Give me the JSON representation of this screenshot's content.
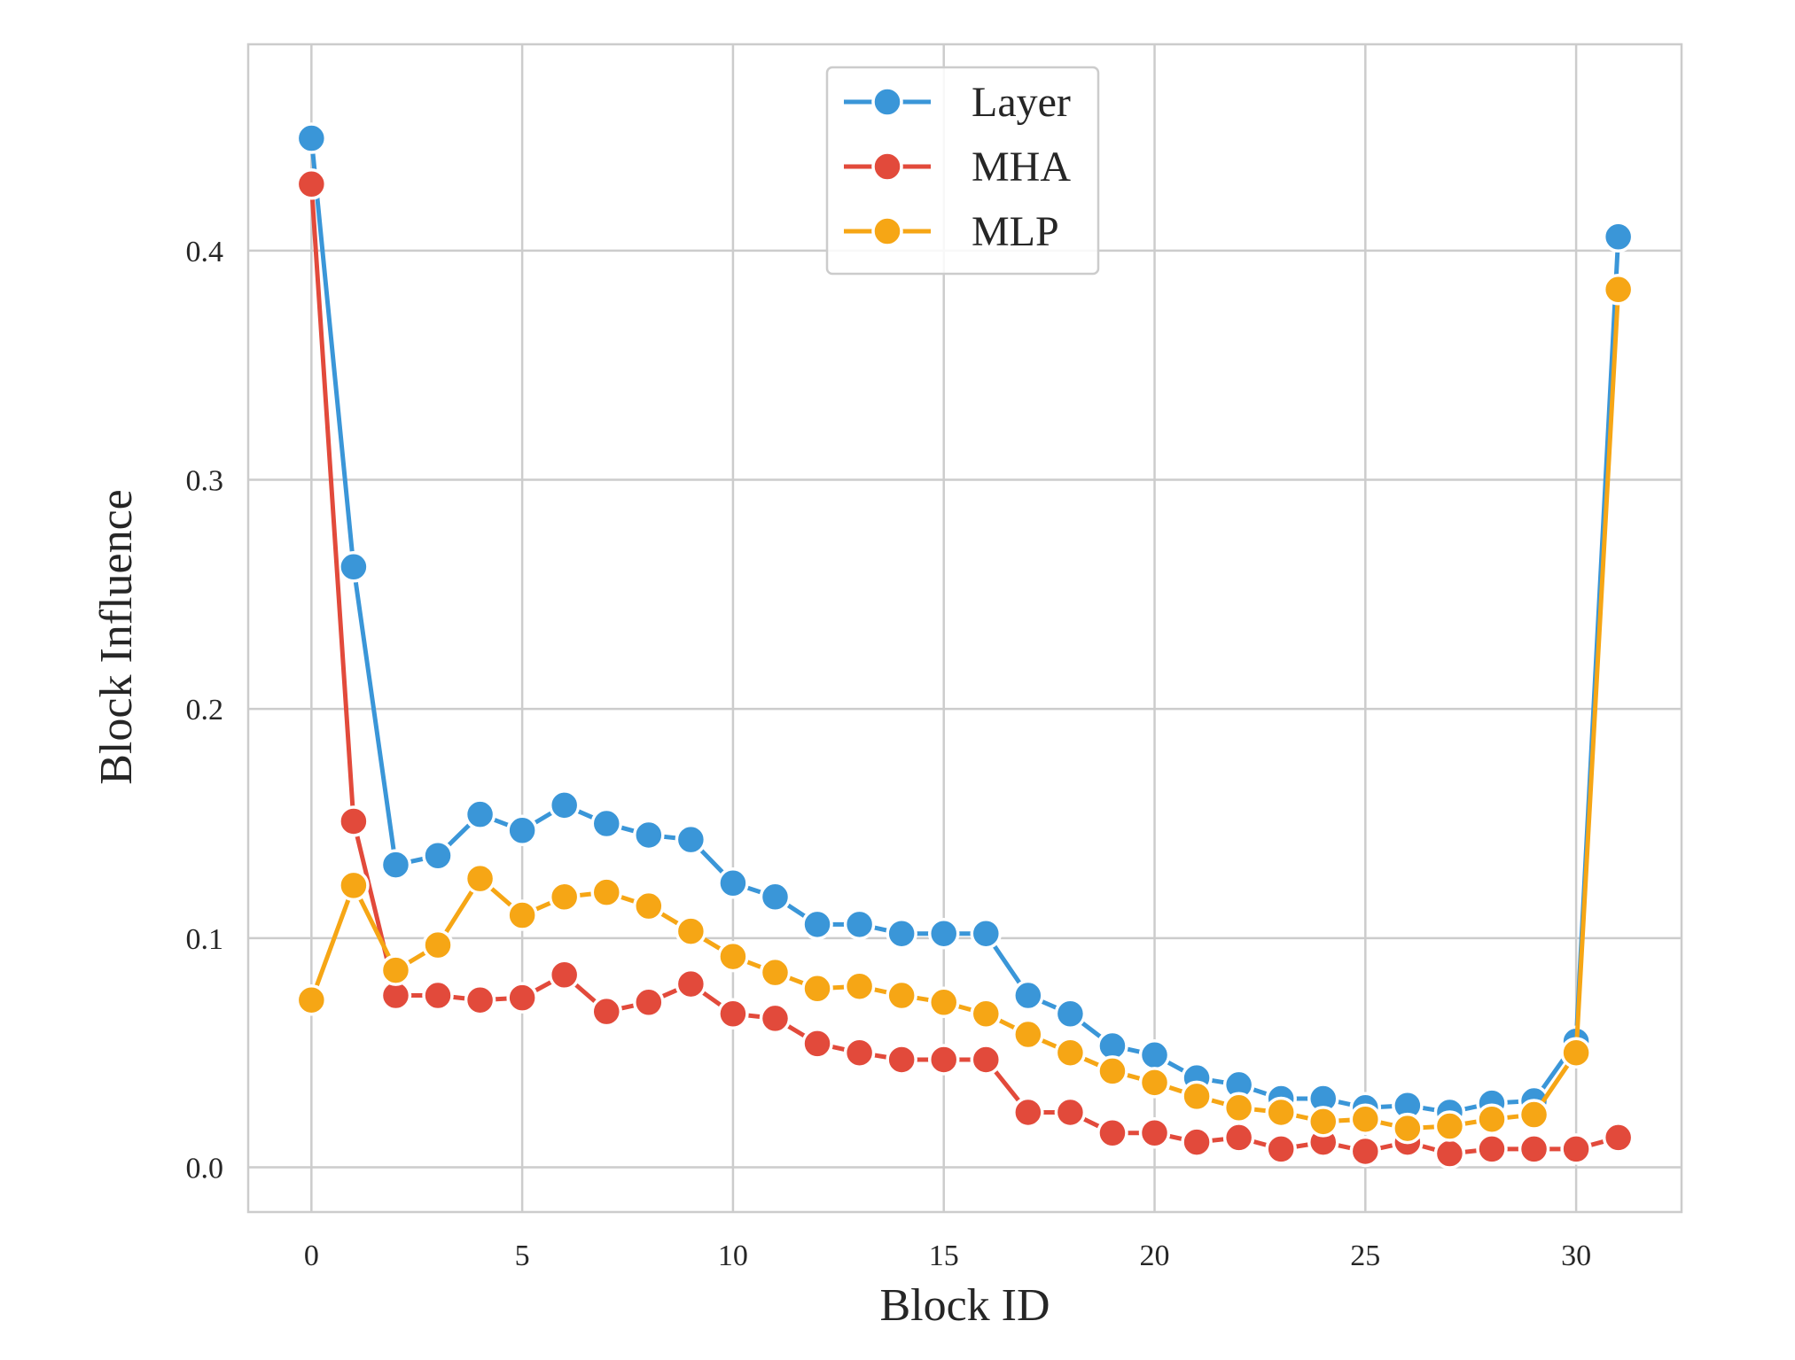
{
  "chart_data": {
    "type": "line",
    "xlabel": "Block ID",
    "ylabel": "Block Influence",
    "xlim": [
      -1.5,
      32.5
    ],
    "ylim": [
      -0.0195,
      0.49
    ],
    "xticks": [
      0,
      5,
      10,
      15,
      20,
      25,
      30
    ],
    "xtick_labels": [
      "0",
      "5",
      "10",
      "15",
      "20",
      "25",
      "30"
    ],
    "yticks": [
      0.0,
      0.1,
      0.2,
      0.3,
      0.4
    ],
    "ytick_labels": [
      "0.0",
      "0.1",
      "0.2",
      "0.3",
      "0.4"
    ],
    "grid": true,
    "legend_position": "top-center",
    "x": [
      0,
      1,
      2,
      3,
      4,
      5,
      6,
      7,
      8,
      9,
      10,
      11,
      12,
      13,
      14,
      15,
      16,
      17,
      18,
      19,
      20,
      21,
      22,
      23,
      24,
      25,
      26,
      27,
      28,
      29,
      30,
      31
    ],
    "series": [
      {
        "name": "Layer",
        "color": "#3a96d8",
        "values": [
          0.449,
          0.262,
          0.132,
          0.136,
          0.154,
          0.147,
          0.158,
          0.15,
          0.145,
          0.143,
          0.124,
          0.118,
          0.106,
          0.106,
          0.102,
          0.102,
          0.102,
          0.075,
          0.067,
          0.053,
          0.049,
          0.039,
          0.036,
          0.03,
          0.03,
          0.026,
          0.027,
          0.024,
          0.028,
          0.029,
          0.055,
          0.406
        ]
      },
      {
        "name": "MHA",
        "color": "#e24a3b",
        "values": [
          0.429,
          0.151,
          0.075,
          0.075,
          0.073,
          0.074,
          0.084,
          0.068,
          0.072,
          0.08,
          0.067,
          0.065,
          0.054,
          0.05,
          0.047,
          0.047,
          0.047,
          0.024,
          0.024,
          0.015,
          0.015,
          0.011,
          0.013,
          0.008,
          0.011,
          0.007,
          0.011,
          0.006,
          0.008,
          0.008,
          0.008,
          0.013
        ]
      },
      {
        "name": "MLP",
        "color": "#f6a615",
        "values": [
          0.073,
          0.123,
          0.086,
          0.097,
          0.126,
          0.11,
          0.118,
          0.12,
          0.114,
          0.103,
          0.092,
          0.085,
          0.078,
          0.079,
          0.075,
          0.072,
          0.067,
          0.058,
          0.05,
          0.042,
          0.037,
          0.031,
          0.026,
          0.024,
          0.02,
          0.021,
          0.017,
          0.018,
          0.021,
          0.023,
          0.05,
          0.383
        ]
      }
    ]
  }
}
